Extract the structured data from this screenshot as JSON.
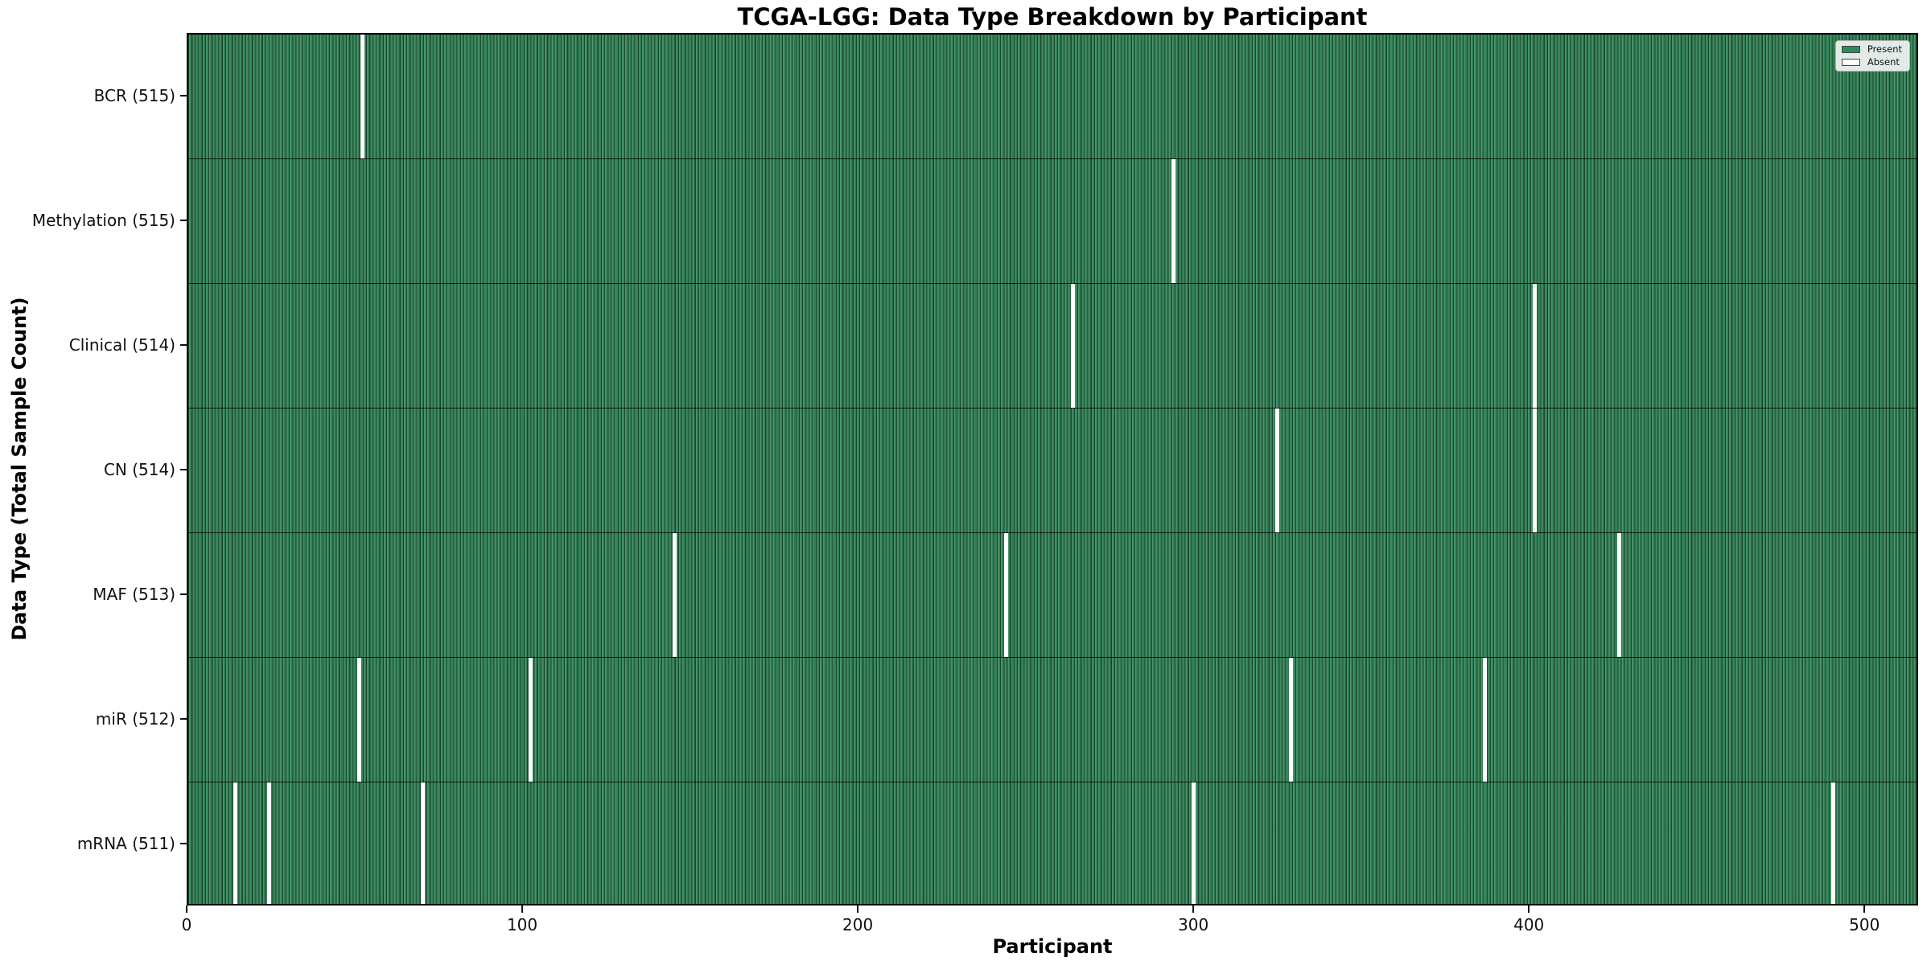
{
  "chart_data": {
    "type": "heatmap",
    "title": "TCGA-LGG: Data Type Breakdown by Participant",
    "xlabel": "Participant",
    "ylabel": "Data Type (Total Sample Count)",
    "n_participants": 516,
    "x_ticks": [
      0,
      100,
      200,
      300,
      400,
      500
    ],
    "xlim": [
      0,
      516
    ],
    "grid": false,
    "legend_position": "upper right",
    "present_color": "#2e8b57",
    "absent_color": "#ffffff",
    "bar_edge_color": "#000000",
    "legend": [
      {
        "label": "Present",
        "color": "#2e8b57"
      },
      {
        "label": "Absent",
        "color": "#ffffff"
      }
    ],
    "rows": [
      {
        "label": "BCR (515)",
        "data_type": "BCR",
        "total": 515,
        "absent_participants": [
          52
        ]
      },
      {
        "label": "Methylation (515)",
        "data_type": "Methylation",
        "total": 515,
        "absent_participants": [
          294
        ]
      },
      {
        "label": "Clinical (514)",
        "data_type": "Clinical",
        "total": 514,
        "absent_participants": [
          264,
          402
        ]
      },
      {
        "label": "CN (514)",
        "data_type": "CN",
        "total": 514,
        "absent_participants": [
          325,
          402
        ]
      },
      {
        "label": "MAF (513)",
        "data_type": "MAF",
        "total": 513,
        "absent_participants": [
          145,
          244,
          427
        ]
      },
      {
        "label": "miR (512)",
        "data_type": "miR",
        "total": 512,
        "absent_participants": [
          51,
          102,
          329,
          387
        ]
      },
      {
        "label": "mRNA (511)",
        "data_type": "mRNA",
        "total": 511,
        "absent_participants": [
          14,
          24,
          70,
          300,
          491
        ]
      }
    ]
  }
}
